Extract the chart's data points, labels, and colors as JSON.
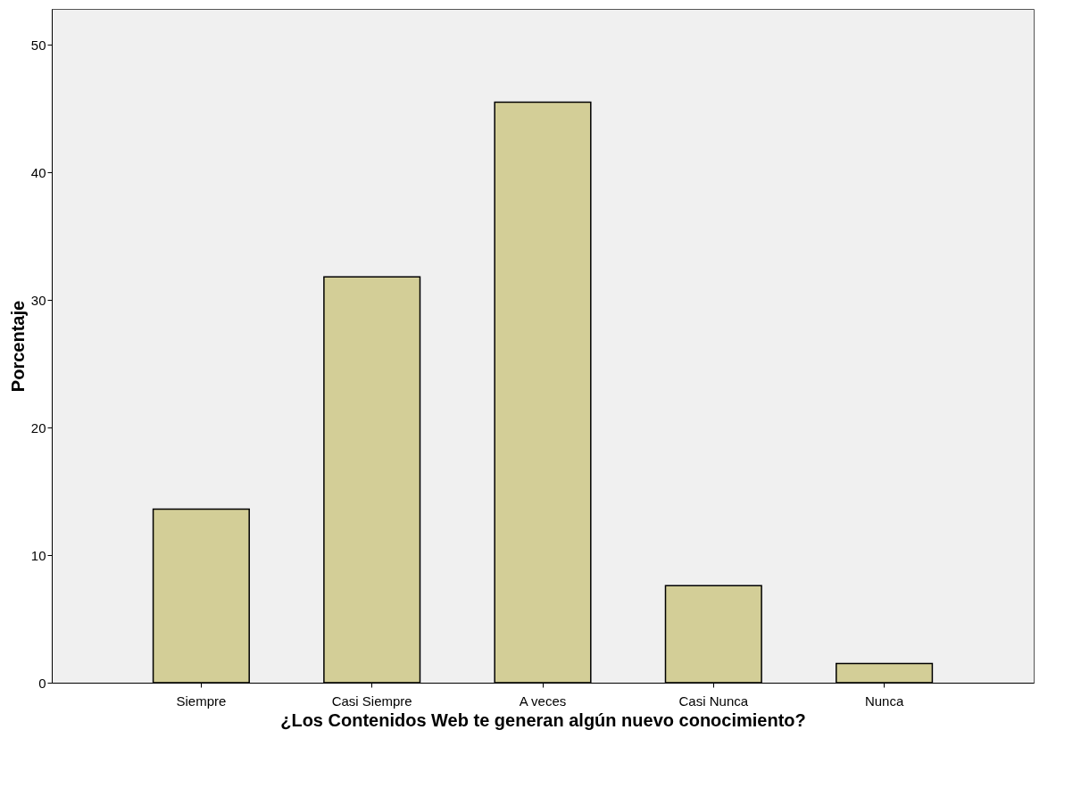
{
  "chart_data": {
    "type": "bar",
    "xlabel": "¿Los Contenidos Web te generan algún nuevo conocimiento?",
    "ylabel": "Porcentaje",
    "categories": [
      "Siempre",
      "Casi Siempre",
      "A veces",
      "Casi Nunca",
      "Nunca"
    ],
    "values": [
      13.6,
      31.8,
      45.5,
      7.6,
      1.5
    ],
    "color": "#d3ce97",
    "ylim": [
      0,
      52.8
    ],
    "yticks": [
      0,
      10,
      20,
      30,
      40,
      50
    ],
    "grid": false
  }
}
